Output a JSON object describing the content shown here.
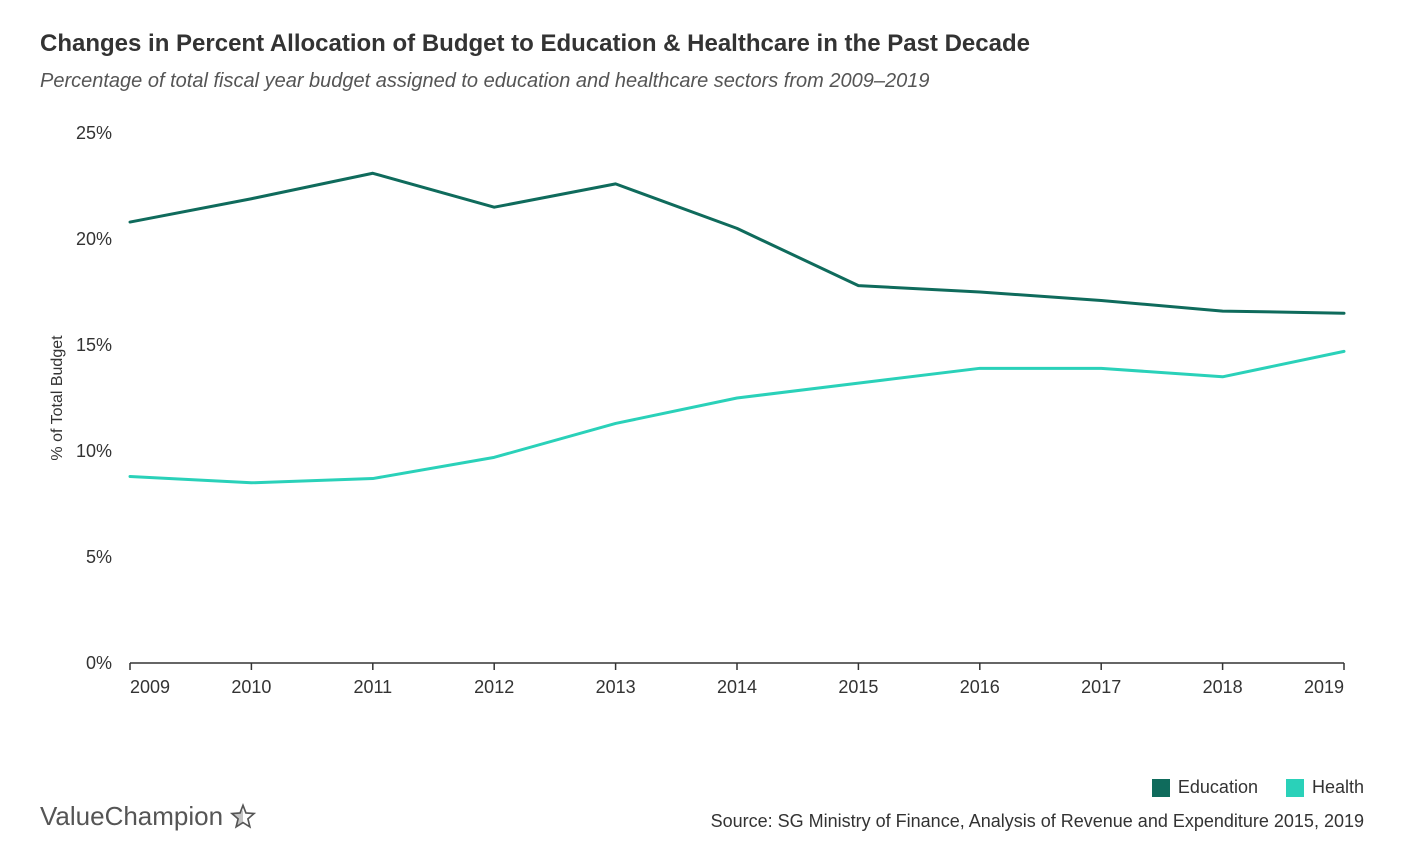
{
  "title": "Changes in Percent Allocation of Budget to Education & Healthcare in the Past Decade",
  "subtitle": "Percentage of total fiscal year budget assigned to education and healthcare sectors from 2009–2019",
  "chart": {
    "type": "line",
    "ylabel": "% of Total Budget",
    "ylim": [
      0,
      25
    ],
    "ytick_step": 5,
    "ytick_labels": [
      "0%",
      "5%",
      "10%",
      "15%",
      "20%",
      "25%"
    ],
    "categories": [
      "2009",
      "2010",
      "2011",
      "2012",
      "2013",
      "2014",
      "2015",
      "2016",
      "2017",
      "2018",
      "2019"
    ],
    "series": [
      {
        "name": "Education",
        "color": "#0f6b5c",
        "values": [
          20.8,
          21.9,
          23.1,
          21.5,
          22.6,
          20.5,
          17.8,
          17.5,
          17.1,
          16.6,
          16.5
        ]
      },
      {
        "name": "Health",
        "color": "#2ad1b9",
        "values": [
          8.8,
          8.5,
          8.7,
          9.7,
          11.3,
          12.5,
          13.2,
          13.9,
          13.9,
          13.5,
          14.7
        ]
      }
    ],
    "line_width": 3,
    "axis_color": "#333333",
    "background_color": "#ffffff",
    "title_fontsize": 24,
    "subtitle_fontsize": 20,
    "label_fontsize": 18
  },
  "legend": {
    "items": [
      {
        "label": "Education",
        "color": "#0f6b5c"
      },
      {
        "label": "Health",
        "color": "#2ad1b9"
      }
    ]
  },
  "brand": "ValueChampion",
  "source": "Source: SG Ministry of Finance, Analysis of Revenue and Expenditure 2015, 2019"
}
